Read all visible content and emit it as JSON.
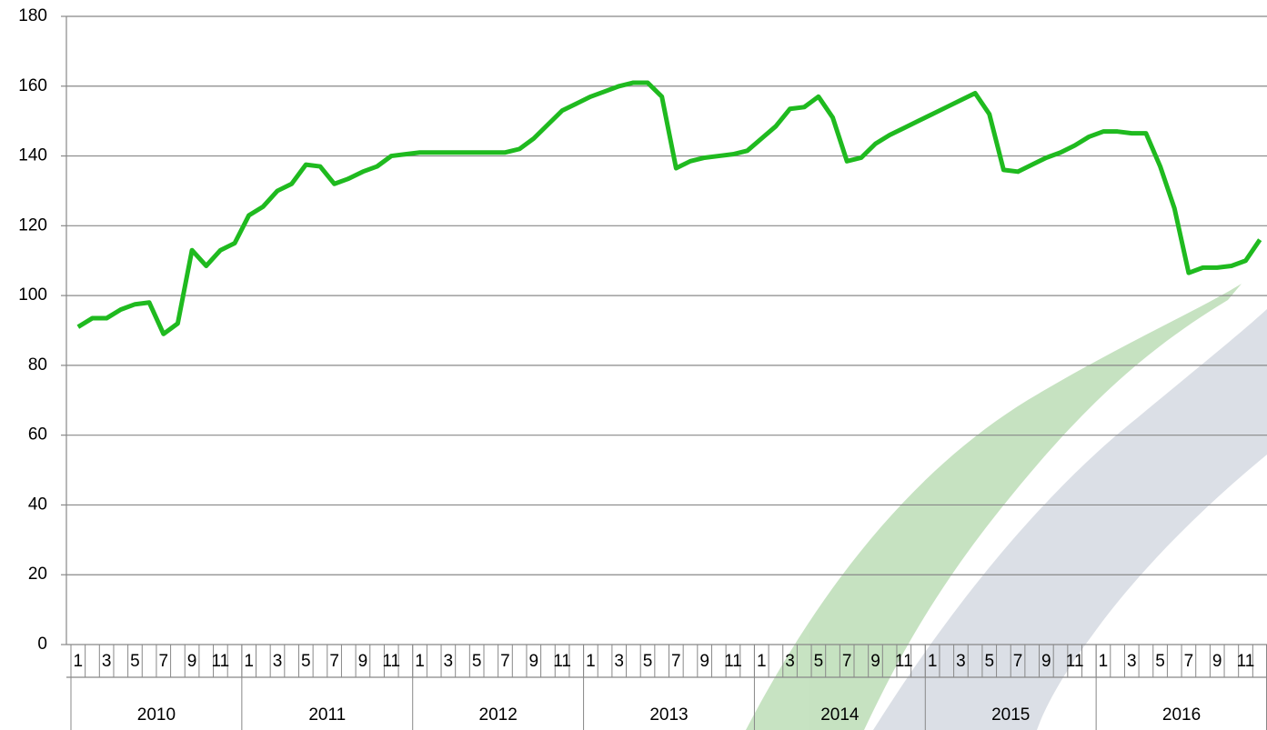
{
  "chart_data": {
    "type": "line",
    "categories": [
      "1",
      null,
      "3",
      null,
      "5",
      null,
      "7",
      null,
      "9",
      null,
      "11",
      null,
      "1",
      null,
      "3",
      null,
      "5",
      null,
      "7",
      null,
      "9",
      null,
      "11",
      null,
      "1",
      null,
      "3",
      null,
      "5",
      null,
      "7",
      null,
      "9",
      null,
      "11",
      null,
      "1",
      null,
      "3",
      null,
      "5",
      null,
      "7",
      null,
      "9",
      null,
      "11",
      null,
      "1",
      null,
      "3",
      null,
      "5",
      null,
      "7",
      null,
      "9",
      null,
      "11",
      null,
      "1",
      null,
      "3",
      null,
      "5",
      null,
      "7",
      null,
      "9",
      null,
      "11",
      null,
      "1",
      null,
      "3",
      null,
      "5",
      null,
      "7",
      null,
      "9",
      null,
      "11",
      null
    ],
    "groups": [
      "2010",
      "2011",
      "2012",
      "2013",
      "2014",
      "2015",
      "2016"
    ],
    "values": [
      91,
      93.5,
      93.5,
      96,
      97.5,
      98,
      89,
      92,
      113,
      108.5,
      113,
      115,
      123,
      125.5,
      130,
      132,
      137.5,
      137,
      132,
      133.5,
      135.5,
      137,
      140,
      140.5,
      141,
      141,
      141,
      141,
      141,
      141,
      141,
      142,
      145,
      149,
      153,
      155,
      157,
      158.5,
      160,
      161,
      161,
      157,
      136.5,
      138.5,
      139.5,
      140,
      140.5,
      141.5,
      145,
      148.5,
      153.5,
      154,
      157,
      151,
      138.5,
      139.5,
      143.5,
      146,
      148,
      150,
      152,
      154,
      156,
      158,
      152,
      136,
      135.5,
      137.5,
      139.5,
      141,
      143,
      145.5,
      147,
      147,
      146.5,
      146.5,
      137,
      125,
      106.5,
      108,
      108,
      108.5,
      110,
      116
    ],
    "color": "#1fba1f",
    "ylim": [
      0,
      180
    ],
    "yticks": [
      0,
      20,
      40,
      60,
      80,
      100,
      120,
      140,
      160,
      180
    ],
    "grid": true
  }
}
